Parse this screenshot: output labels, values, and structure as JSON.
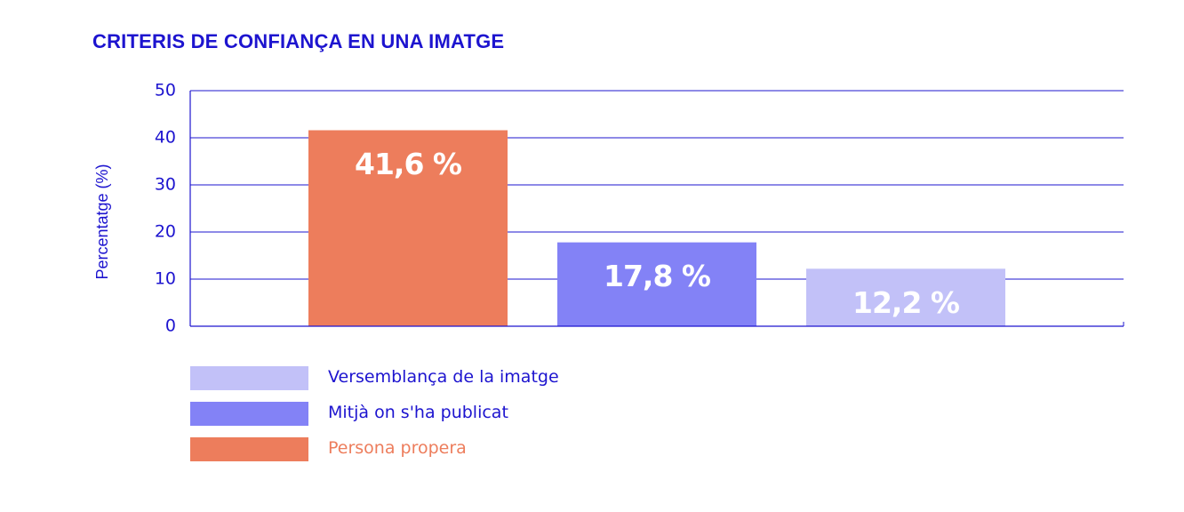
{
  "chart_data": {
    "type": "bar",
    "title": "CRITERIS DE CONFIANÇA EN UNA IMATGE",
    "xlabel": "",
    "ylabel": "Percentatge (%)",
    "ylim": [
      0,
      50
    ],
    "yticks": [
      0,
      10,
      20,
      30,
      40,
      50
    ],
    "grid": true,
    "legend_position": "bottom-left",
    "categories": [
      "Persona propera",
      "Mitjà on s'ha publicat",
      "Versemblança de la imatge"
    ],
    "values": [
      41.6,
      17.8,
      12.2
    ],
    "data_labels": [
      "41,6 %",
      "17,8 %",
      "12,2 %"
    ],
    "colors": [
      "#ed7d5c",
      "#8382f6",
      "#c2c1f8"
    ],
    "legend": [
      {
        "label": "Versemblança de la imatge",
        "color": "#c2c1f8",
        "text_color": "#1d14cf"
      },
      {
        "label": "Mitjà on s'ha publicat",
        "color": "#8382f6",
        "text_color": "#1d14cf"
      },
      {
        "label": "Persona propera",
        "color": "#ed7d5c",
        "text_color": "#ed7d5c"
      }
    ],
    "axis_color": "#1d14cf"
  }
}
